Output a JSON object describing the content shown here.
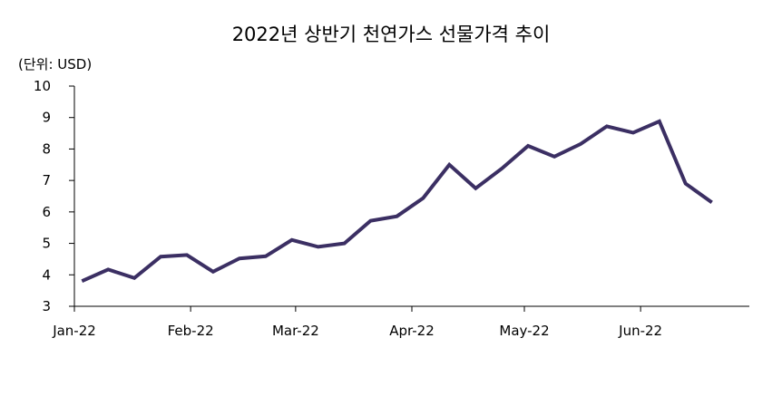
{
  "chart_data": {
    "type": "line",
    "title": "2022년 상반기 천연가스 선물가격 추이",
    "unit_label": "(단위: USD)",
    "xlabel": "",
    "ylabel": "",
    "ylim": [
      3,
      10
    ],
    "yticks": [
      "3",
      "4",
      "5",
      "6",
      "7",
      "8",
      "9",
      "10"
    ],
    "xticks": [
      "Jan-22",
      "Feb-22",
      "Mar-22",
      "Apr-22",
      "May-22",
      "Jun-22"
    ],
    "x": [
      "2022-01-03",
      "2022-01-10",
      "2022-01-17",
      "2022-01-24",
      "2022-01-31",
      "2022-02-07",
      "2022-02-14",
      "2022-02-21",
      "2022-02-28",
      "2022-03-07",
      "2022-03-14",
      "2022-03-21",
      "2022-03-28",
      "2022-04-04",
      "2022-04-11",
      "2022-04-18",
      "2022-04-25",
      "2022-05-02",
      "2022-05-09",
      "2022-05-16",
      "2022-05-23",
      "2022-05-30",
      "2022-06-06",
      "2022-06-13",
      "2022-06-20"
    ],
    "series": [
      {
        "name": "",
        "values": [
          3.8,
          4.17,
          3.9,
          4.58,
          4.63,
          4.1,
          4.52,
          4.59,
          5.11,
          4.89,
          5.0,
          5.72,
          5.86,
          6.44,
          7.5,
          6.75,
          7.38,
          8.1,
          7.76,
          8.16,
          8.72,
          8.52,
          8.88,
          6.9,
          6.3
        ]
      }
    ],
    "tick_dates": [
      "2022-01-01",
      "2022-02-01",
      "2022-03-01",
      "2022-04-01",
      "2022-05-01",
      "2022-06-01"
    ],
    "range_dates": [
      "2022-01-01",
      "2022-06-30"
    ],
    "grid": false,
    "colors": {
      "line": "#3b2f63",
      "axis": "#000000"
    }
  }
}
